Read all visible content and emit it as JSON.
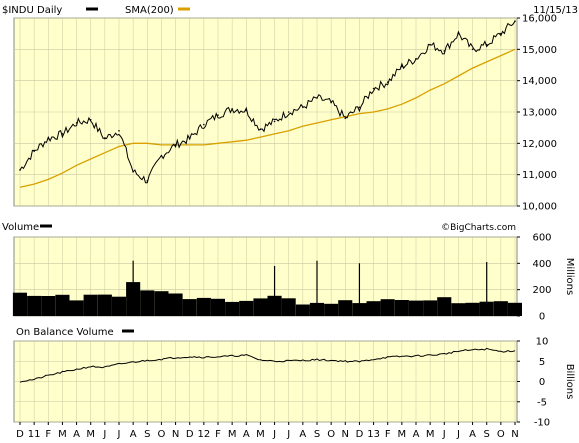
{
  "chart_data": [
    {
      "type": "line",
      "panel": "price",
      "date_label": "11/15/13",
      "legend": [
        {
          "label": "$INDU Daily",
          "color": "#000000"
        },
        {
          "label": "SMA(200)",
          "color": "#d9a000"
        }
      ],
      "ylim": [
        10000,
        16000
      ],
      "yticks": [
        "10,000",
        "11,000",
        "12,000",
        "13,000",
        "14,000",
        "15,000",
        "16,000"
      ],
      "ytick_values": [
        10000,
        11000,
        12000,
        13000,
        14000,
        15000,
        16000
      ],
      "grid": true,
      "x": [
        "2010-12",
        "2011-01",
        "2011-02",
        "2011-03",
        "2011-04",
        "2011-05",
        "2011-06",
        "2011-07",
        "2011-08",
        "2011-09",
        "2011-10",
        "2011-11",
        "2011-12",
        "2012-01",
        "2012-02",
        "2012-03",
        "2012-04",
        "2012-05",
        "2012-06",
        "2012-07",
        "2012-08",
        "2012-09",
        "2012-10",
        "2012-11",
        "2012-12",
        "2013-01",
        "2013-02",
        "2013-03",
        "2013-04",
        "2013-05",
        "2013-06",
        "2013-07",
        "2013-08",
        "2013-09",
        "2013-10",
        "2013-11"
      ],
      "series": [
        {
          "name": "$INDU Daily",
          "color": "#000000",
          "values": [
            11150,
            11750,
            12150,
            12300,
            12650,
            12750,
            12150,
            12400,
            11100,
            10800,
            11600,
            11950,
            12150,
            12600,
            12900,
            13100,
            13050,
            12450,
            12700,
            13000,
            13150,
            13450,
            13300,
            12800,
            13150,
            13750,
            13950,
            14450,
            14700,
            15150,
            14950,
            15500,
            15000,
            15150,
            15500,
            15900
          ]
        },
        {
          "name": "SMA(200)",
          "color": "#d9a000",
          "values": [
            10600,
            10700,
            10850,
            11050,
            11300,
            11500,
            11700,
            11900,
            12000,
            12000,
            11950,
            11950,
            11950,
            11950,
            12000,
            12050,
            12100,
            12200,
            12300,
            12400,
            12550,
            12650,
            12750,
            12850,
            12950,
            13000,
            13100,
            13250,
            13450,
            13700,
            13900,
            14150,
            14400,
            14600,
            14800,
            15000
          ]
        }
      ]
    },
    {
      "type": "bar",
      "panel": "volume",
      "title": "Volume",
      "ylabel": "Millions",
      "ylim": [
        0,
        600
      ],
      "yticks": [
        "0",
        "200",
        "400",
        "600"
      ],
      "ytick_values": [
        0,
        200,
        400,
        600
      ],
      "grid": true,
      "x": [
        "2010-12",
        "2011-01",
        "2011-02",
        "2011-03",
        "2011-04",
        "2011-05",
        "2011-06",
        "2011-07",
        "2011-08",
        "2011-09",
        "2011-10",
        "2011-11",
        "2011-12",
        "2012-01",
        "2012-02",
        "2012-03",
        "2012-04",
        "2012-05",
        "2012-06",
        "2012-07",
        "2012-08",
        "2012-09",
        "2012-10",
        "2012-11",
        "2012-12",
        "2013-01",
        "2013-02",
        "2013-03",
        "2013-04",
        "2013-05",
        "2013-06",
        "2013-07",
        "2013-08",
        "2013-09",
        "2013-10",
        "2013-11"
      ],
      "values": [
        170,
        150,
        140,
        160,
        130,
        150,
        170,
        160,
        260,
        200,
        180,
        160,
        140,
        130,
        125,
        120,
        120,
        140,
        150,
        120,
        100,
        110,
        105,
        120,
        110,
        125,
        115,
        110,
        120,
        110,
        130,
        100,
        100,
        105,
        110,
        100
      ],
      "spikes": [
        {
          "x": "2011-08",
          "value": 420
        },
        {
          "x": "2012-06",
          "value": 380
        },
        {
          "x": "2012-09",
          "value": 420
        },
        {
          "x": "2012-12",
          "value": 400
        },
        {
          "x": "2013-09",
          "value": 410
        }
      ]
    },
    {
      "type": "line",
      "panel": "obv",
      "title": "On Balance Volume",
      "ylabel": "Billions",
      "ylim": [
        -10,
        10
      ],
      "yticks": [
        "-10",
        "-5",
        "0",
        "5",
        "10"
      ],
      "ytick_values": [
        -10,
        -5,
        0,
        5,
        10
      ],
      "grid": true,
      "x": [
        "2010-12",
        "2011-01",
        "2011-02",
        "2011-03",
        "2011-04",
        "2011-05",
        "2011-06",
        "2011-07",
        "2011-08",
        "2011-09",
        "2011-10",
        "2011-11",
        "2011-12",
        "2012-01",
        "2012-02",
        "2012-03",
        "2012-04",
        "2012-05",
        "2012-06",
        "2012-07",
        "2012-08",
        "2012-09",
        "2012-10",
        "2012-11",
        "2012-12",
        "2013-01",
        "2013-02",
        "2013-03",
        "2013-04",
        "2013-05",
        "2013-06",
        "2013-07",
        "2013-08",
        "2013-09",
        "2013-10",
        "2013-11"
      ],
      "series": [
        {
          "name": "On Balance Volume",
          "color": "#000000",
          "values": [
            0.0,
            0.5,
            1.5,
            2.3,
            3.0,
            3.7,
            3.5,
            4.3,
            4.8,
            5.2,
            5.5,
            5.9,
            6.1,
            6.0,
            6.1,
            6.3,
            6.5,
            5.3,
            5.0,
            5.1,
            5.2,
            5.4,
            5.2,
            5.0,
            4.9,
            5.5,
            6.0,
            6.2,
            6.3,
            6.5,
            6.8,
            7.5,
            7.8,
            8.0,
            7.4,
            7.6
          ]
        }
      ]
    }
  ],
  "watermark": "©BigCharts.com",
  "month_labels": [
    "D",
    "11",
    "F",
    "M",
    "A",
    "M",
    "J",
    "J",
    "A",
    "S",
    "O",
    "N",
    "D",
    "12",
    "F",
    "M",
    "A",
    "M",
    "J",
    "J",
    "A",
    "S",
    "O",
    "N",
    "D",
    "13",
    "F",
    "M",
    "A",
    "M",
    "J",
    "J",
    "A",
    "S",
    "O",
    "N"
  ],
  "colors": {
    "panel_bg": "#ffffcc",
    "grid": "#c8c8a0",
    "border": "#888888",
    "sma": "#d9a000",
    "price": "#000000"
  }
}
